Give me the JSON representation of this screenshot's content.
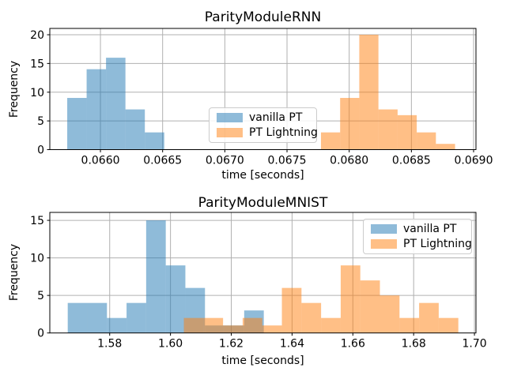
{
  "legend": {
    "items": [
      {
        "label": "vanilla PT",
        "color": "#1f77b4"
      },
      {
        "label": "PT Lightning",
        "color": "#ff7f0e"
      }
    ],
    "alpha": 0.5,
    "border_color": "#cccccc"
  },
  "colors": {
    "grid": "#b0b0b0",
    "spine": "#000000",
    "background": "#ffffff",
    "text": "#000000",
    "vanilla_pt_fill_on_white": "#8fbbd9",
    "pt_lightning_fill_on_white": "#ffbf87",
    "overlap_fill": "#c79d73"
  },
  "chart_data": [
    {
      "type": "bar",
      "subtype": "histogram",
      "title": "ParityModuleRNN",
      "xlabel": "time [seconds]",
      "ylabel": "Frequency",
      "xlim": [
        0.065593,
        0.069019
      ],
      "ylim": [
        0,
        21.1
      ],
      "grid": true,
      "legend_loc": "center",
      "xticks": {
        "values": [
          0.066,
          0.0665,
          0.067,
          0.0675,
          0.068,
          0.0685,
          0.069
        ],
        "labels": [
          "0.0660",
          "0.0665",
          "0.0670",
          "0.0675",
          "0.0680",
          "0.0685",
          "0.0690"
        ]
      },
      "yticks": {
        "values": [
          0,
          5,
          10,
          15,
          20
        ],
        "labels": [
          "0",
          "5",
          "10",
          "15",
          "20"
        ]
      },
      "series": [
        {
          "name": "vanilla PT",
          "color": "#1f77b4",
          "alpha": 0.5,
          "bin_start": 0.065733,
          "bin_width": 0.000156,
          "counts": [
            9,
            14,
            16,
            7,
            3
          ]
        },
        {
          "name": "PT Lightning",
          "color": "#ff7f0e",
          "alpha": 0.5,
          "bin_start": 0.067773,
          "bin_width": 0.000154,
          "counts": [
            3,
            9,
            20,
            7,
            6,
            3,
            1
          ]
        }
      ]
    },
    {
      "type": "bar",
      "subtype": "histogram",
      "title": "ParityModuleMNIST",
      "xlabel": "time [seconds]",
      "ylabel": "Frequency",
      "xlim": [
        1.5603,
        1.7005
      ],
      "ylim": [
        0,
        16.06
      ],
      "grid": true,
      "legend_loc": "upper right",
      "xticks": {
        "values": [
          1.58,
          1.6,
          1.62,
          1.64,
          1.66,
          1.68,
          1.7
        ],
        "labels": [
          "1.58",
          "1.60",
          "1.62",
          "1.64",
          "1.66",
          "1.68",
          "1.70"
        ]
      },
      "yticks": {
        "values": [
          0,
          5,
          10,
          15
        ],
        "labels": [
          "0",
          "5",
          "10",
          "15"
        ]
      },
      "series": [
        {
          "name": "vanilla PT",
          "color": "#1f77b4",
          "alpha": 0.5,
          "bin_start": 1.5662,
          "bin_width": 0.00645,
          "counts": [
            4,
            4,
            2,
            4,
            15,
            9,
            6,
            1,
            1,
            3
          ]
        },
        {
          "name": "PT Lightning",
          "color": "#ff7f0e",
          "alpha": 0.5,
          "bin_start": 1.6044,
          "bin_width": 0.00645,
          "counts": [
            2,
            2,
            1,
            2,
            1,
            6,
            4,
            2,
            9,
            7,
            5,
            2,
            4,
            2
          ]
        }
      ]
    }
  ]
}
